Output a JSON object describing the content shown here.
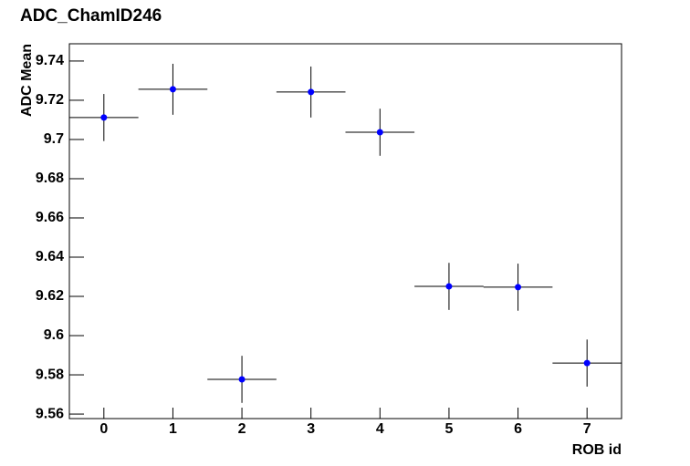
{
  "chart_data": {
    "type": "errorbar",
    "title": "ADC_ChamID246",
    "x_label": "ROB id",
    "y_label": "ADC Mean",
    "x": [
      0,
      1,
      2,
      3,
      4,
      5,
      6,
      7
    ],
    "values": [
      9.7112,
      9.7256,
      9.5777,
      9.7242,
      9.7037,
      9.6251,
      9.6247,
      9.586
    ],
    "errors": [
      0.012,
      0.013,
      0.012,
      0.013,
      0.012,
      0.012,
      0.012,
      0.012
    ],
    "xerrors": [
      0.5,
      0.5,
      0.5,
      0.5,
      0.5,
      0.5,
      0.5,
      0.5
    ],
    "color": "#0000ff",
    "xlim": [
      -0.5,
      7.5
    ],
    "ylim": [
      9.5577,
      9.7488
    ],
    "xticks": [
      0,
      1,
      2,
      3,
      4,
      5,
      6,
      7
    ],
    "yticks": [
      9.56,
      9.58,
      9.6,
      9.62,
      9.64,
      9.66,
      9.68,
      9.7,
      9.72,
      9.74
    ]
  }
}
